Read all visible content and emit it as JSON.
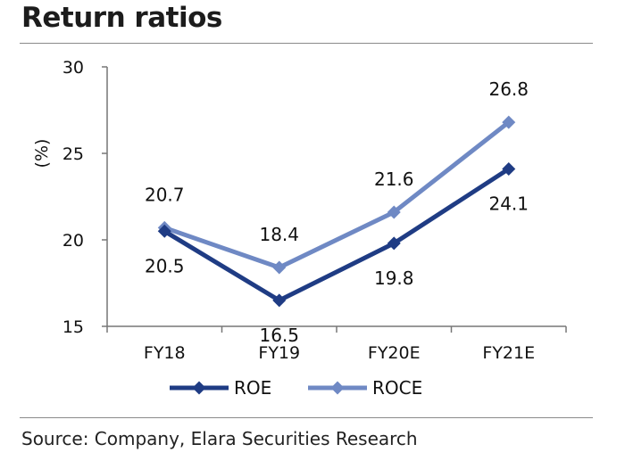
{
  "title": "Return ratios",
  "source": "Source: Company, Elara Securities Research",
  "chart_data": {
    "type": "line",
    "title": "Return ratios",
    "xlabel": "",
    "ylabel": "(%)",
    "categories": [
      "FY18",
      "FY19",
      "FY20E",
      "FY21E"
    ],
    "ylim": [
      15,
      30
    ],
    "yticks": [
      15,
      20,
      25,
      30
    ],
    "grid": false,
    "legend_position": "bottom",
    "series": [
      {
        "name": "ROE",
        "values": [
          20.5,
          16.5,
          19.8,
          24.1
        ],
        "color": "#1f3c84",
        "label_position": [
          "below",
          "below",
          "below",
          "below"
        ]
      },
      {
        "name": "ROCE",
        "values": [
          20.7,
          18.4,
          21.6,
          26.8
        ],
        "color": "#6f89c4",
        "label_position": [
          "above",
          "above",
          "above",
          "above"
        ]
      }
    ]
  }
}
